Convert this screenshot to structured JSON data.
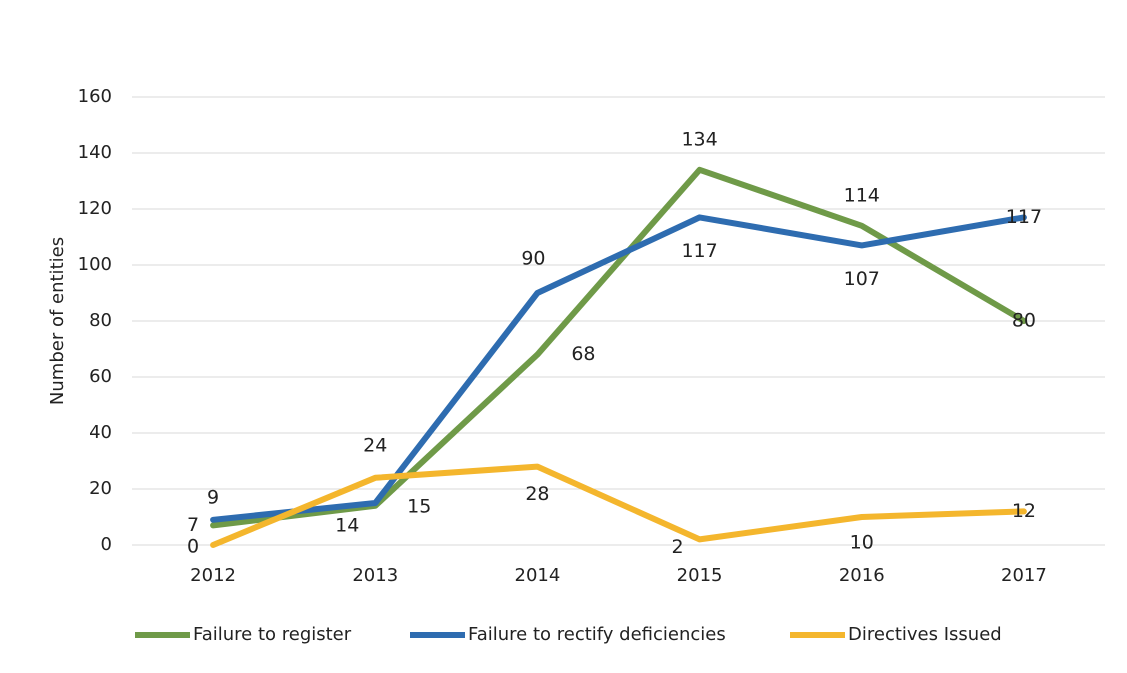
{
  "chart_data": {
    "type": "line",
    "y_label": "Number of  entities",
    "categories": [
      "2012",
      "2013",
      "2014",
      "2015",
      "2016",
      "2017"
    ],
    "series": [
      {
        "name": "Failure to register",
        "color": "#6f9a48",
        "values": [
          7,
          14,
          68,
          134,
          114,
          80
        ]
      },
      {
        "name": "Failure to rectify deficiencies",
        "color": "#2e6cb0",
        "values": [
          9,
          15,
          90,
          117,
          107,
          117
        ]
      },
      {
        "name": "Directives Issued",
        "color": "#f4b62d",
        "values": [
          0,
          24,
          28,
          2,
          10,
          12
        ]
      }
    ],
    "ylim": [
      0,
      160
    ],
    "yticks": [
      0,
      20,
      40,
      60,
      80,
      100,
      120,
      140,
      160
    ],
    "grid": true
  }
}
